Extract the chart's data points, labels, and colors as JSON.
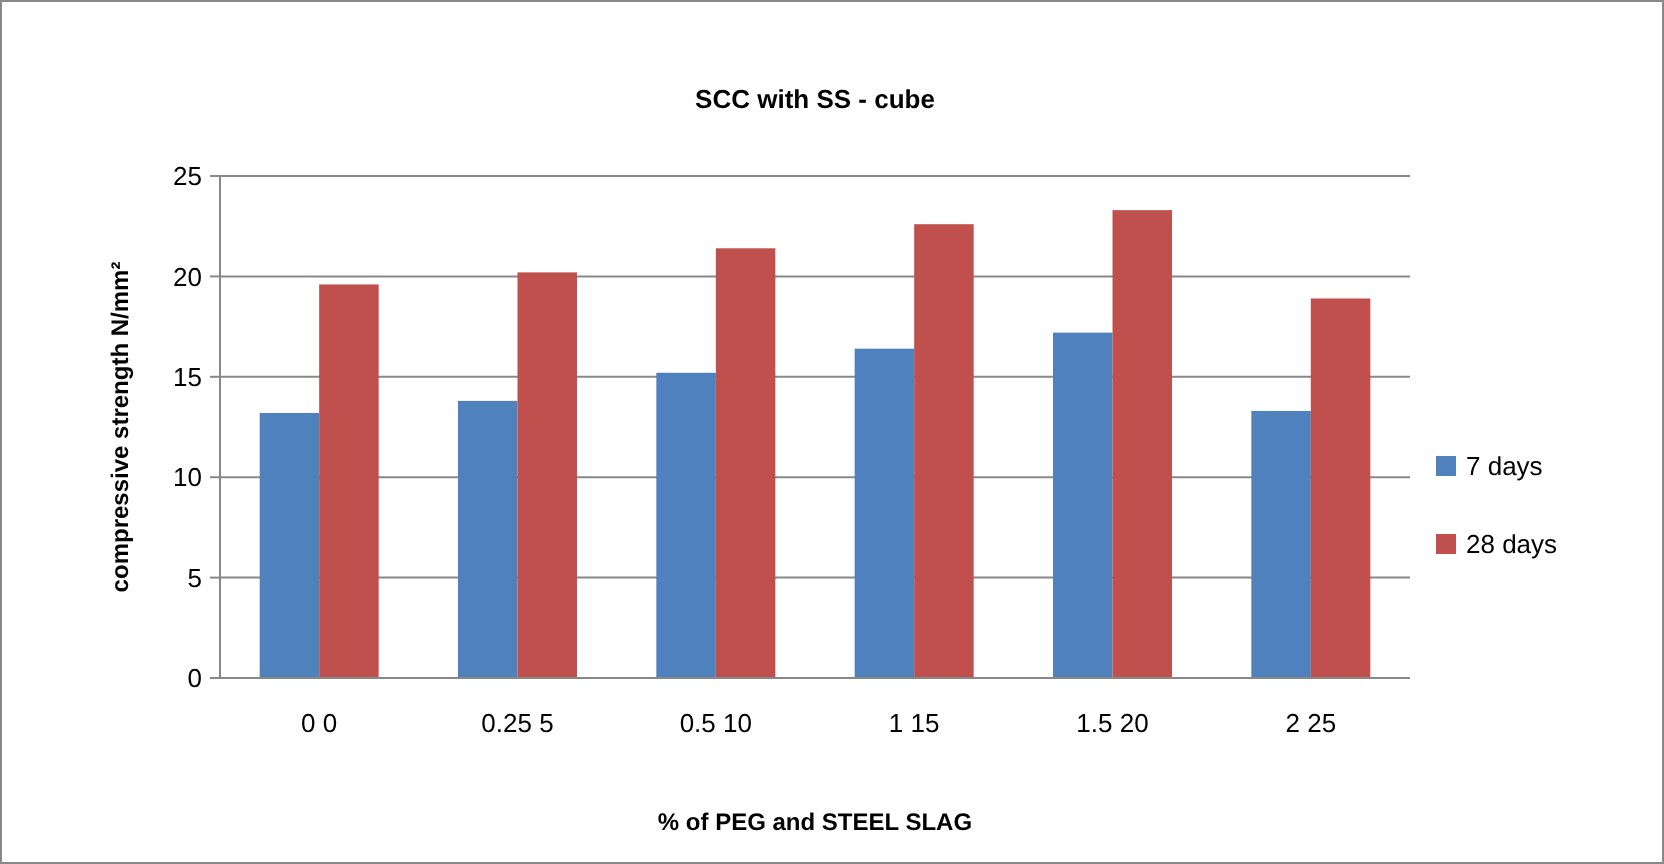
{
  "chart_data": {
    "type": "bar",
    "title": "SCC with SS - cube",
    "xlabel": "% of PEG and STEEL SLAG",
    "ylabel": "compressive strength N/mm²",
    "categories": [
      "0 0",
      "0.25 5",
      "0.5 10",
      "1 15",
      "1.5 20",
      "2 25"
    ],
    "series": [
      {
        "name": "7 days",
        "color": "#4f81bd",
        "values": [
          13.2,
          13.8,
          15.2,
          16.4,
          17.2,
          13.3
        ]
      },
      {
        "name": "28 days",
        "color": "#c0504d",
        "values": [
          19.6,
          20.2,
          21.4,
          22.6,
          23.3,
          18.9
        ]
      }
    ],
    "ylim": [
      0,
      25
    ],
    "yticks": [
      0,
      5,
      10,
      15,
      20,
      25
    ],
    "grid": "y",
    "legend": "right"
  }
}
